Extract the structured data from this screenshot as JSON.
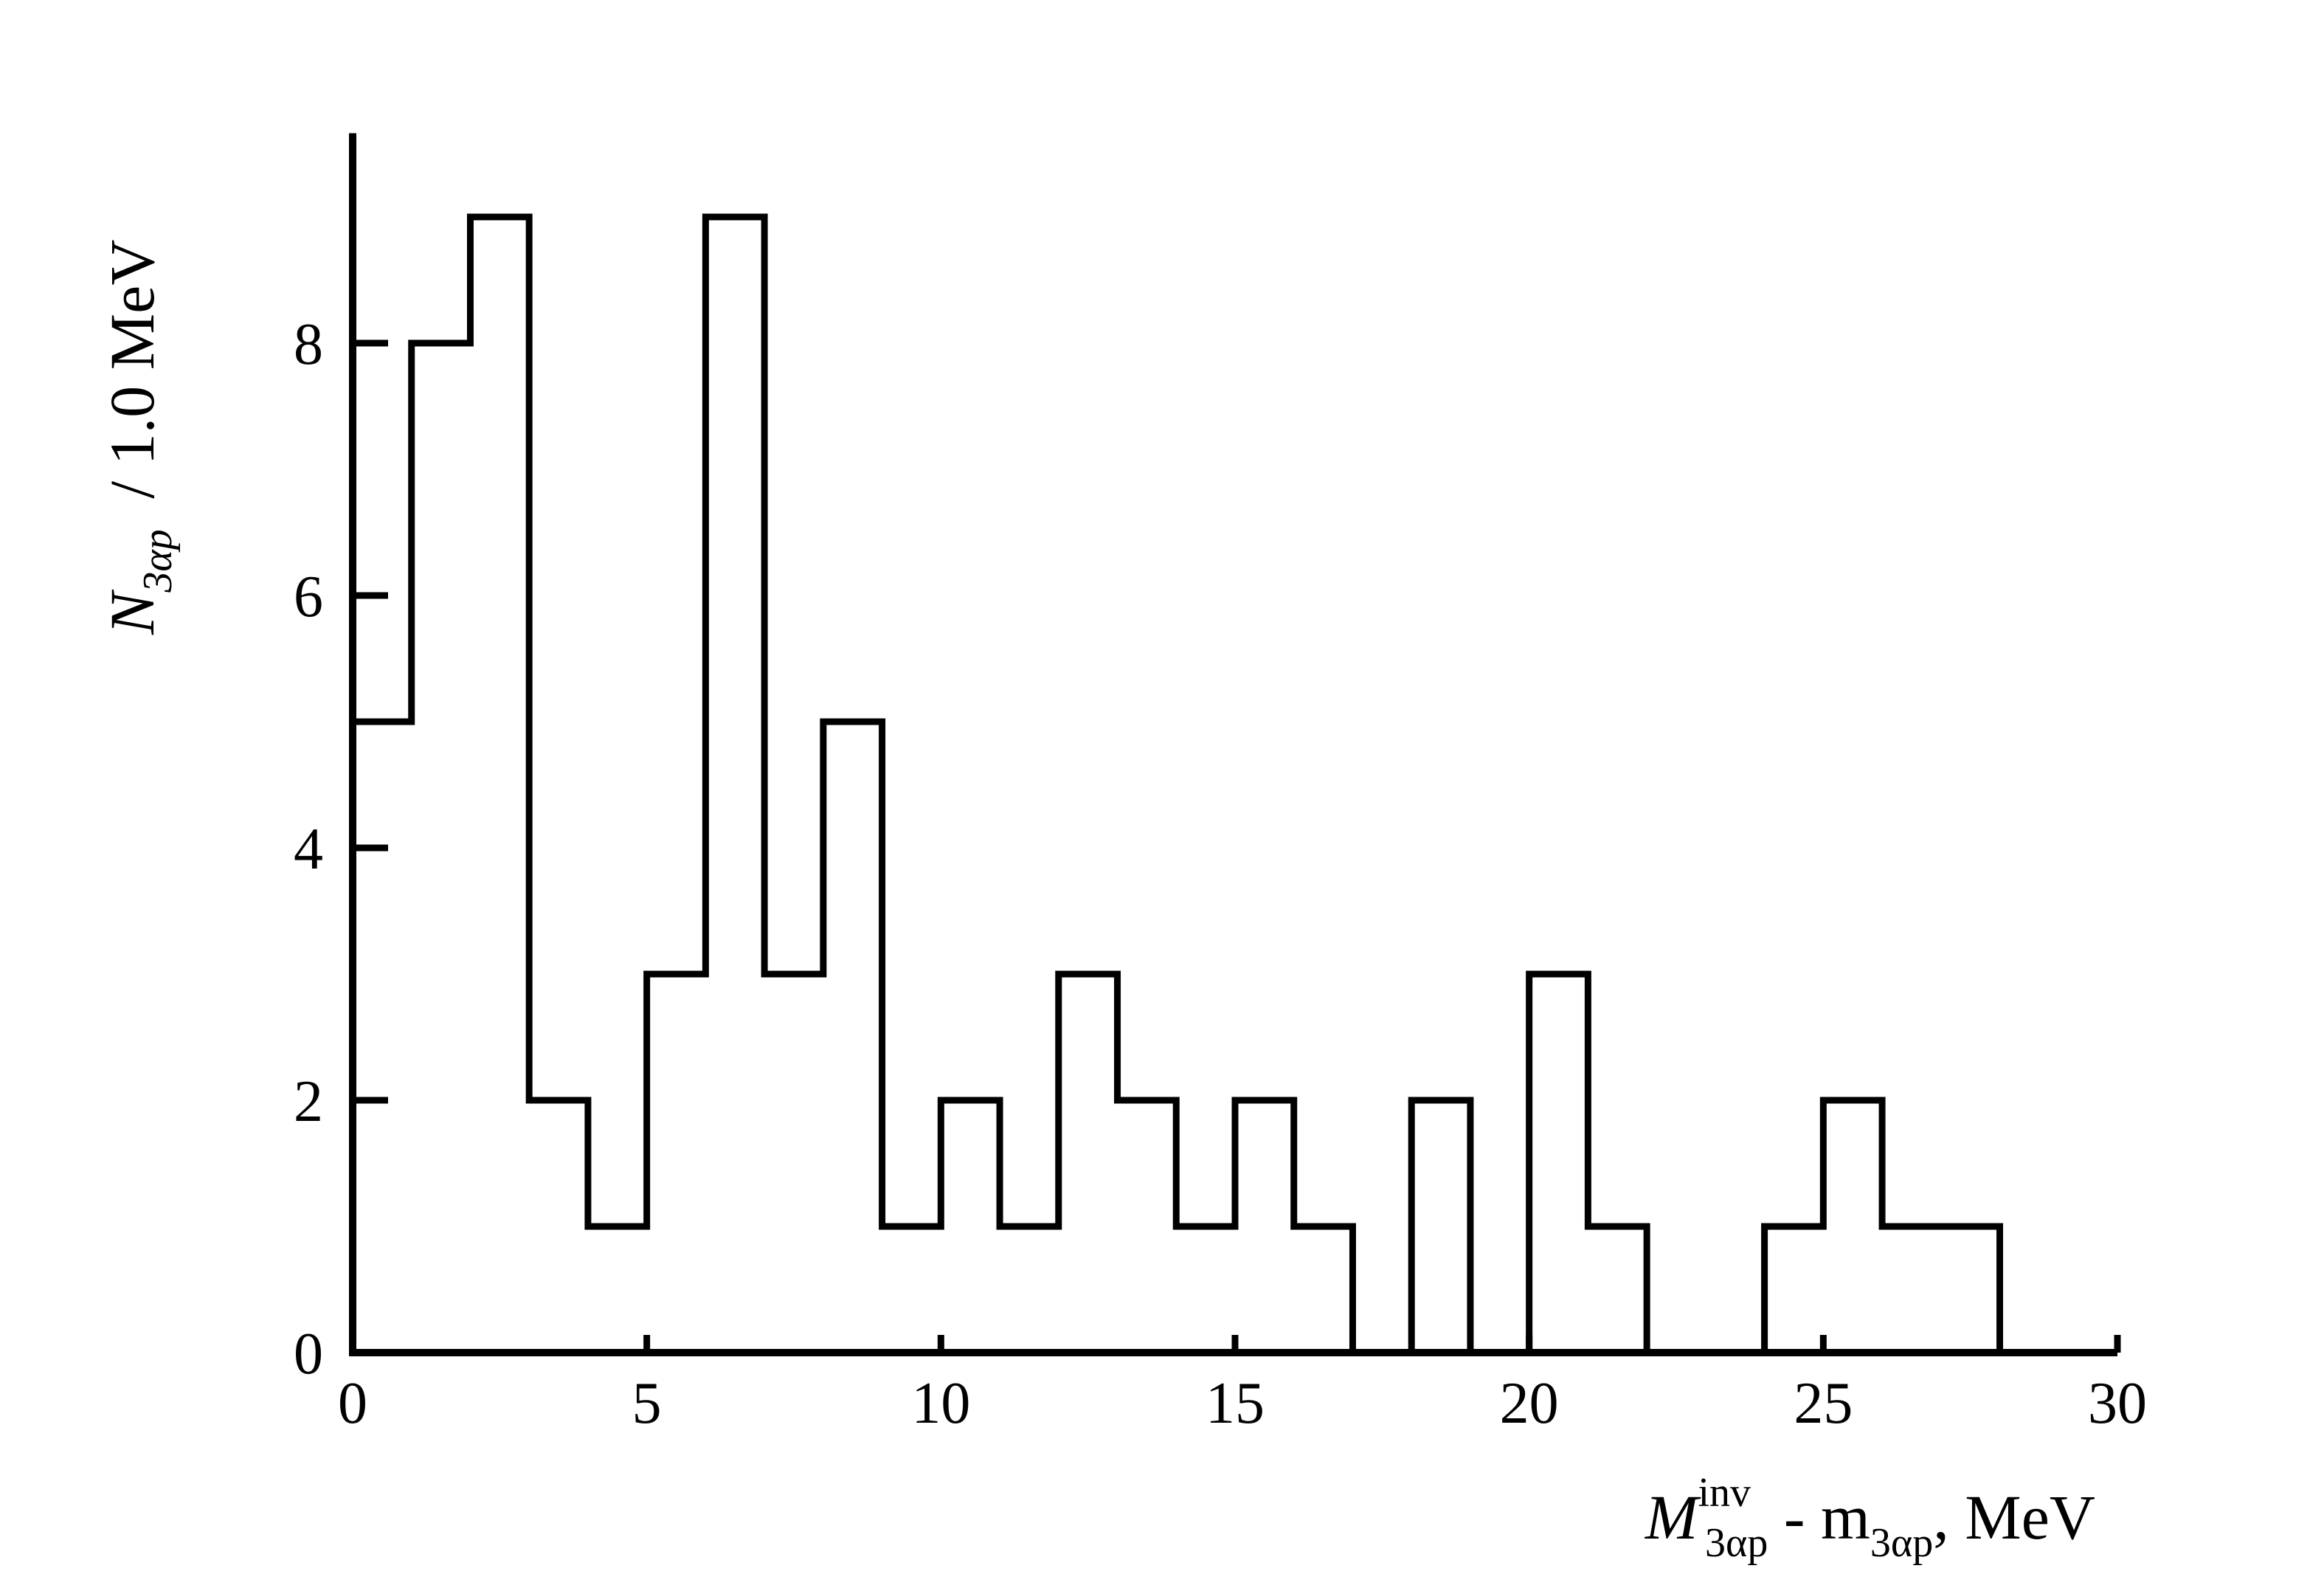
{
  "chart_data": {
    "type": "histogram",
    "bin_width": 1,
    "bin_edges_start": 0,
    "counts": [
      5,
      8,
      9,
      2,
      1,
      3,
      9,
      3,
      5,
      1,
      2,
      1,
      3,
      2,
      1,
      2,
      1,
      0,
      2,
      0,
      3,
      1,
      0,
      0,
      1,
      2,
      1,
      1
    ],
    "xlim": [
      0,
      30
    ],
    "ylim": [
      0,
      9.5
    ],
    "x_ticks": [
      0,
      5,
      10,
      15,
      20,
      25,
      30
    ],
    "y_ticks": [
      0,
      2,
      4,
      6,
      8
    ],
    "xlabel": {
      "main": "M",
      "main_sup": "inv",
      "main_sub": "3αp",
      "mid": " - m",
      "mid_sub": "3αp",
      "tail": ", MeV"
    },
    "ylabel": {
      "main": "N",
      "main_sub": "3αp",
      "tail": " / 1.0 MeV"
    },
    "grid": false,
    "colors": {
      "line": "#000000",
      "background": "#ffffff"
    }
  }
}
